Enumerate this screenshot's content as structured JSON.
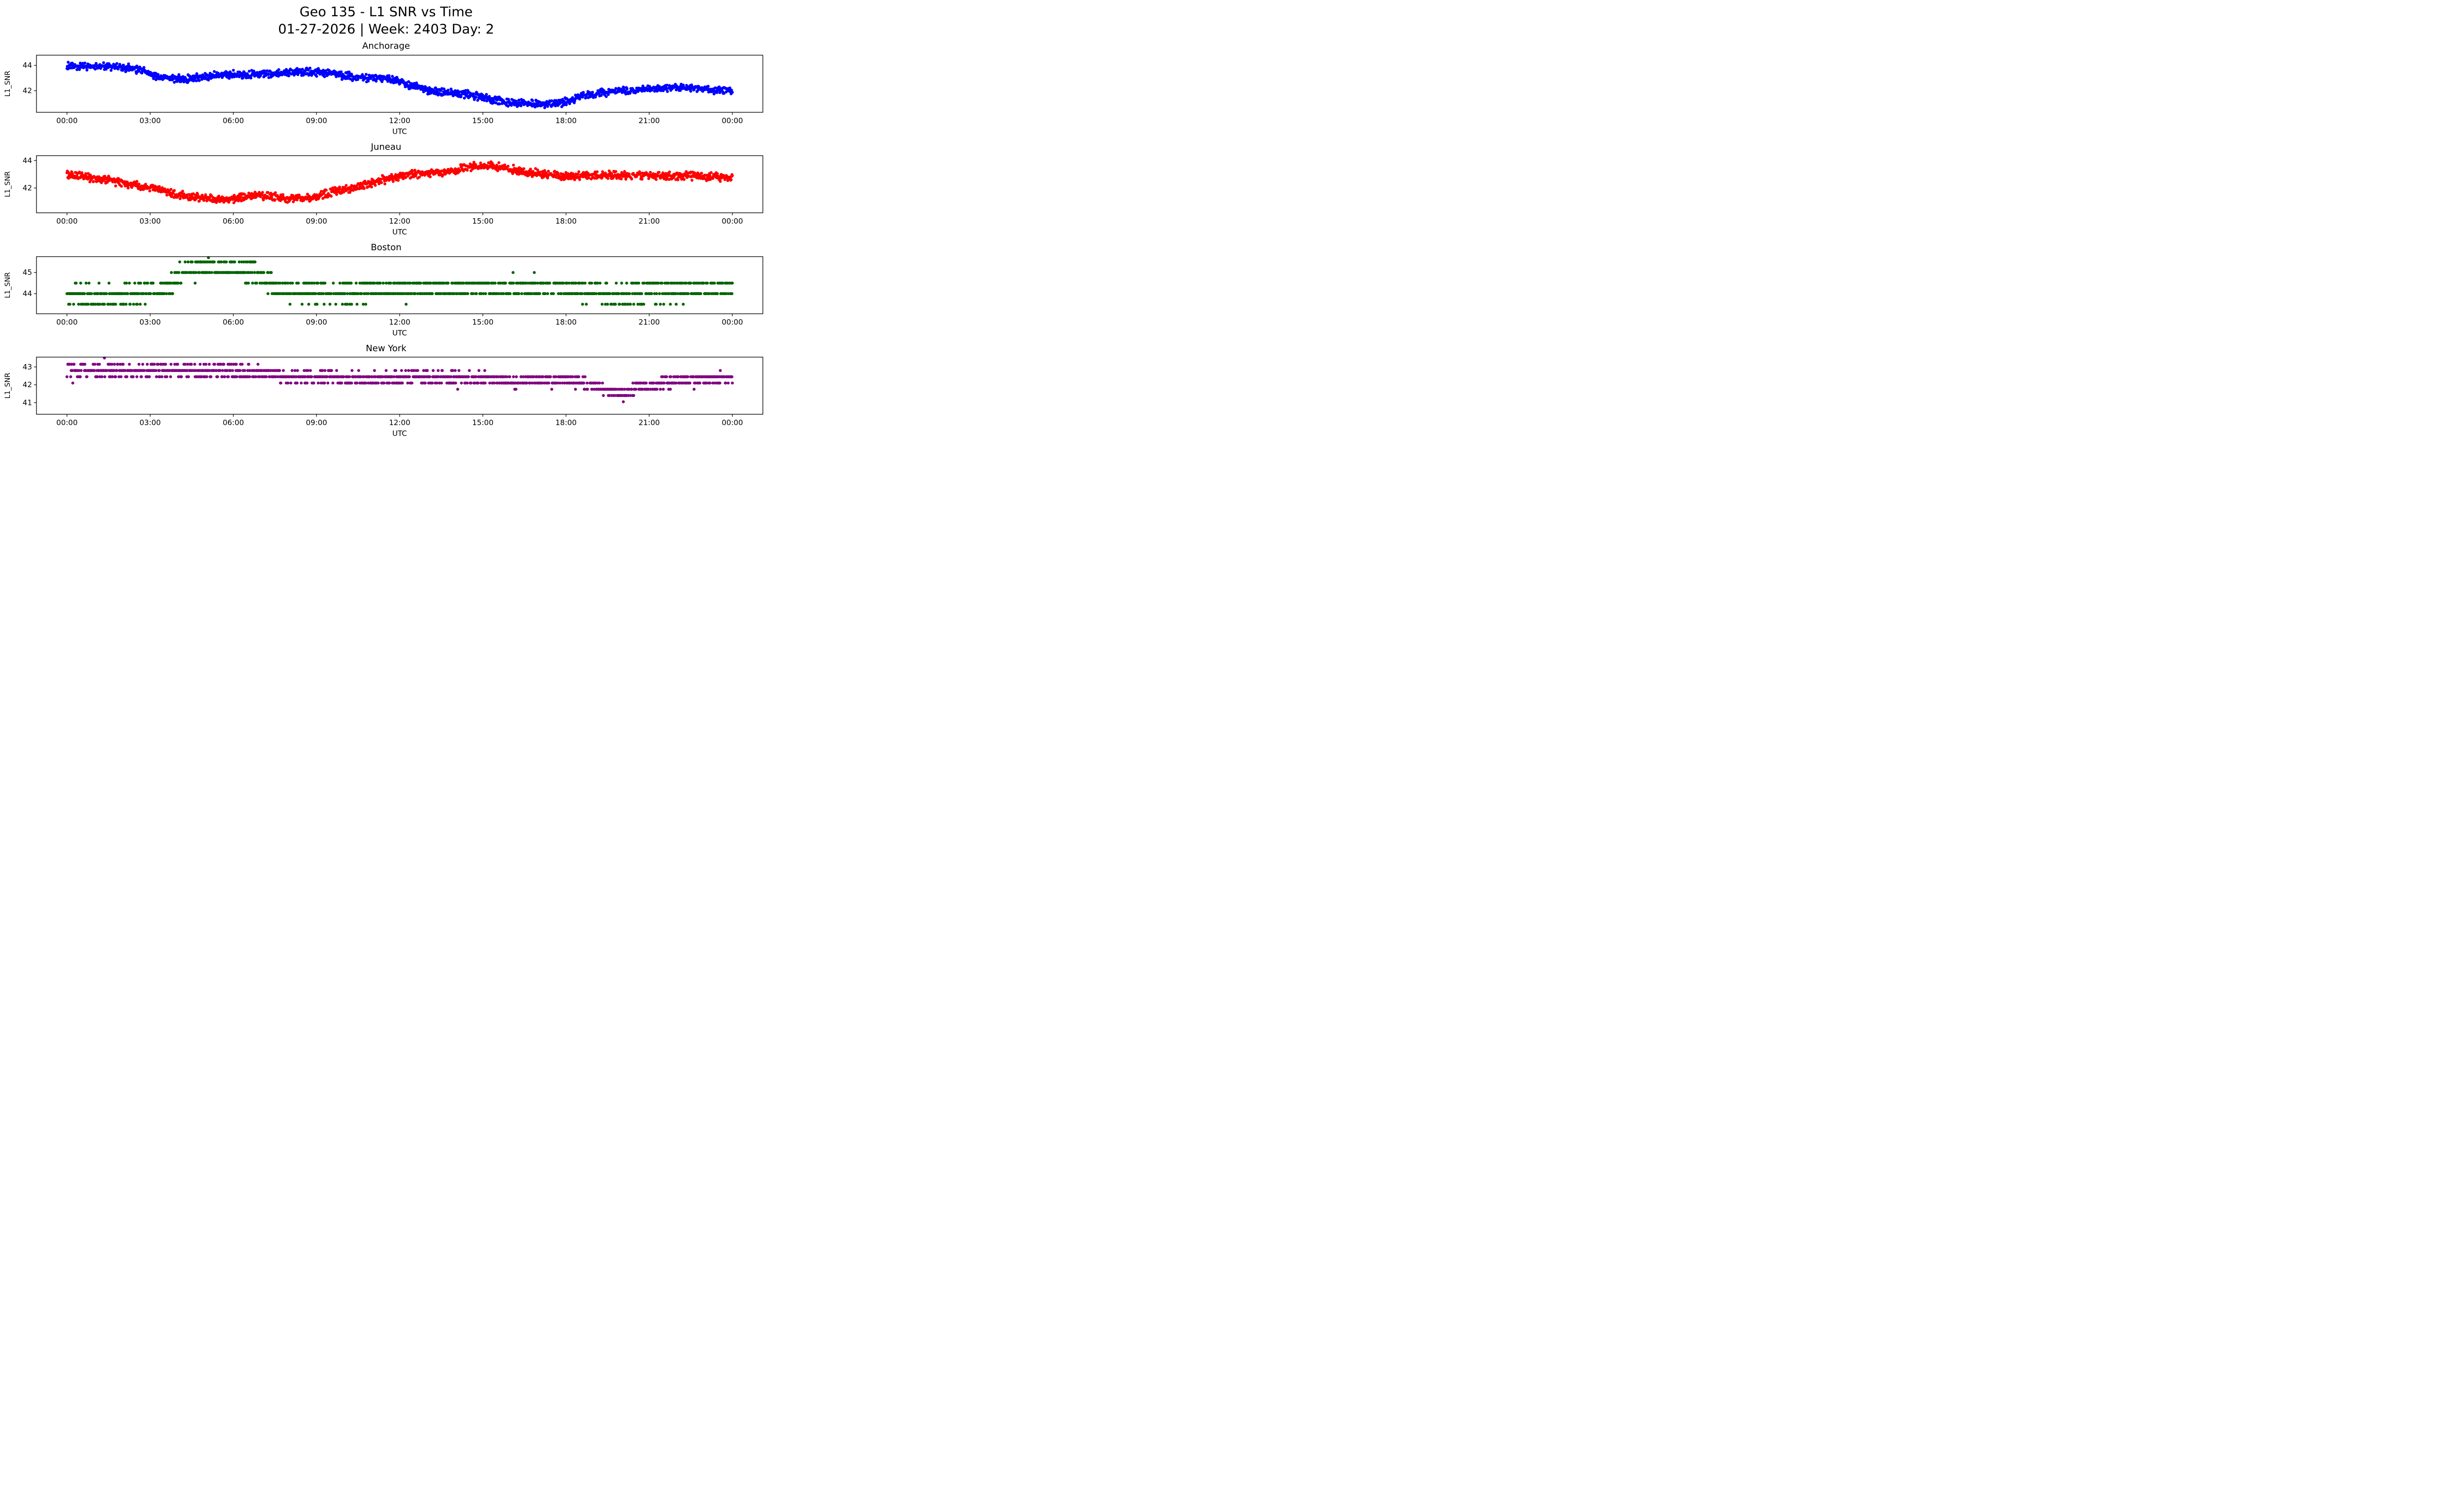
{
  "header": {
    "title_line1": "Geo 135 - L1 SNR vs Time",
    "title_line2": "01-27-2026 | Week: 2403 Day: 2"
  },
  "chart_data": [
    {
      "type": "scatter",
      "title": "Anchorage",
      "color": "#0000ff",
      "xlabel": "UTC",
      "ylabel": "L1_SNR",
      "xlim": [
        -1.1,
        25.1
      ],
      "ylim": [
        40.3,
        44.8
      ],
      "xticks": [
        0,
        3,
        6,
        9,
        12,
        15,
        18,
        21,
        24
      ],
      "xtick_labels": [
        "00:00",
        "03:00",
        "06:00",
        "09:00",
        "12:00",
        "15:00",
        "18:00",
        "21:00",
        "00:00"
      ],
      "yticks": [
        42,
        44
      ],
      "trend": [
        [
          0,
          43.95
        ],
        [
          0.8,
          43.95
        ],
        [
          1.5,
          43.9
        ],
        [
          2.3,
          43.8
        ],
        [
          2.8,
          43.55
        ],
        [
          3.3,
          43.1
        ],
        [
          3.8,
          42.95
        ],
        [
          4.3,
          42.9
        ],
        [
          4.8,
          43.05
        ],
        [
          5.5,
          43.25
        ],
        [
          6.5,
          43.3
        ],
        [
          7.5,
          43.35
        ],
        [
          8.2,
          43.5
        ],
        [
          8.8,
          43.5
        ],
        [
          9.4,
          43.4
        ],
        [
          10,
          43.2
        ],
        [
          10.7,
          43.05
        ],
        [
          11.3,
          43.0
        ],
        [
          11.8,
          42.85
        ],
        [
          12.3,
          42.5
        ],
        [
          12.8,
          42.15
        ],
        [
          13.3,
          41.95
        ],
        [
          14,
          41.85
        ],
        [
          14.7,
          41.6
        ],
        [
          15.3,
          41.3
        ],
        [
          15.8,
          41.1
        ],
        [
          16.5,
          41.0
        ],
        [
          17.2,
          40.95
        ],
        [
          17.8,
          41.05
        ],
        [
          18.3,
          41.35
        ],
        [
          18.8,
          41.65
        ],
        [
          19.3,
          41.85
        ],
        [
          20,
          42.0
        ],
        [
          20.7,
          42.05
        ],
        [
          21.3,
          42.2
        ],
        [
          22,
          42.3
        ],
        [
          22.5,
          42.25
        ],
        [
          23,
          42.1
        ],
        [
          23.5,
          42.05
        ],
        [
          24,
          42.0
        ]
      ],
      "noise": 0.35,
      "quant": 0,
      "quant_offset": 0,
      "gap": 0.04,
      "outlier_prob": 0
    },
    {
      "type": "scatter",
      "title": "Juneau",
      "color": "#ff0000",
      "xlabel": "UTC",
      "ylabel": "L1_SNR",
      "xlim": [
        -1.1,
        25.1
      ],
      "ylim": [
        40.2,
        44.35
      ],
      "xticks": [
        0,
        3,
        6,
        9,
        12,
        15,
        18,
        21,
        24
      ],
      "xtick_labels": [
        "00:00",
        "03:00",
        "06:00",
        "09:00",
        "12:00",
        "15:00",
        "18:00",
        "21:00",
        "00:00"
      ],
      "yticks": [
        42,
        44
      ],
      "trend": [
        [
          0,
          43.0
        ],
        [
          0.5,
          42.85
        ],
        [
          1,
          42.7
        ],
        [
          1.7,
          42.5
        ],
        [
          2.3,
          42.25
        ],
        [
          2.8,
          42.1
        ],
        [
          3.3,
          41.9
        ],
        [
          3.8,
          41.6
        ],
        [
          4.3,
          41.4
        ],
        [
          4.8,
          41.3
        ],
        [
          5.3,
          41.2
        ],
        [
          5.8,
          41.15
        ],
        [
          6.3,
          41.3
        ],
        [
          6.8,
          41.4
        ],
        [
          7.3,
          41.4
        ],
        [
          7.8,
          41.3
        ],
        [
          8.3,
          41.25
        ],
        [
          8.8,
          41.3
        ],
        [
          9.3,
          41.55
        ],
        [
          9.8,
          41.8
        ],
        [
          10.3,
          42.0
        ],
        [
          10.8,
          42.25
        ],
        [
          11.3,
          42.55
        ],
        [
          11.8,
          42.8
        ],
        [
          12.3,
          43.0
        ],
        [
          12.8,
          43.05
        ],
        [
          13.3,
          43.1
        ],
        [
          13.8,
          43.2
        ],
        [
          14.3,
          43.4
        ],
        [
          14.8,
          43.6
        ],
        [
          15.3,
          43.65
        ],
        [
          15.8,
          43.5
        ],
        [
          16.3,
          43.2
        ],
        [
          16.8,
          43.1
        ],
        [
          17.3,
          43.0
        ],
        [
          17.8,
          42.9
        ],
        [
          18.3,
          42.85
        ],
        [
          19,
          42.9
        ],
        [
          20,
          42.95
        ],
        [
          21,
          42.9
        ],
        [
          22,
          42.9
        ],
        [
          23,
          42.85
        ],
        [
          24,
          42.75
        ]
      ],
      "noise": 0.35,
      "quant": 0,
      "quant_offset": 0,
      "gap": 0.04,
      "outlier_prob": 0
    },
    {
      "type": "scatter",
      "title": "Boston",
      "color": "#006400",
      "xlabel": "UTC",
      "ylabel": "L1_SNR",
      "xlim": [
        -1.1,
        25.1
      ],
      "ylim": [
        43.05,
        45.75
      ],
      "xticks": [
        0,
        3,
        6,
        9,
        12,
        15,
        18,
        21,
        24
      ],
      "xtick_labels": [
        "00:00",
        "03:00",
        "06:00",
        "09:00",
        "12:00",
        "15:00",
        "18:00",
        "21:00",
        "00:00"
      ],
      "yticks": [
        44,
        45
      ],
      "trend": [
        [
          0,
          44.0
        ],
        [
          1,
          43.95
        ],
        [
          1.8,
          43.85
        ],
        [
          2.3,
          43.95
        ],
        [
          2.8,
          44.05
        ],
        [
          3.3,
          44.15
        ],
        [
          3.7,
          44.45
        ],
        [
          4.0,
          44.8
        ],
        [
          4.3,
          45.0
        ],
        [
          4.7,
          45.15
        ],
        [
          5.2,
          45.2
        ],
        [
          5.7,
          45.2
        ],
        [
          6.2,
          45.15
        ],
        [
          6.7,
          45.05
        ],
        [
          7.0,
          44.95
        ],
        [
          7.2,
          44.7
        ],
        [
          7.5,
          44.3
        ],
        [
          8,
          44.1
        ],
        [
          8.5,
          44.05
        ],
        [
          9,
          44.05
        ],
        [
          9.5,
          44.0
        ],
        [
          10,
          44.0
        ],
        [
          10.5,
          44.05
        ],
        [
          11,
          44.2
        ],
        [
          11.5,
          44.25
        ],
        [
          12,
          44.25
        ],
        [
          12.5,
          44.25
        ],
        [
          13,
          44.3
        ],
        [
          13.5,
          44.3
        ],
        [
          14,
          44.3
        ],
        [
          14.5,
          44.3
        ],
        [
          15,
          44.35
        ],
        [
          15.5,
          44.3
        ],
        [
          16,
          44.25
        ],
        [
          16.5,
          44.2
        ],
        [
          17,
          44.2
        ],
        [
          17.5,
          44.2
        ],
        [
          18,
          44.2
        ],
        [
          18.5,
          44.15
        ],
        [
          19,
          44.1
        ],
        [
          19.5,
          43.95
        ],
        [
          20,
          43.85
        ],
        [
          20.5,
          44.0
        ],
        [
          21,
          44.1
        ],
        [
          21.5,
          44.1
        ],
        [
          22,
          44.15
        ],
        [
          22.5,
          44.15
        ],
        [
          23,
          44.2
        ],
        [
          23.5,
          44.25
        ],
        [
          24,
          44.25
        ]
      ],
      "noise": 0.42,
      "quant": 0.5,
      "quant_offset": 0,
      "gap": 0.2,
      "outlier_prob": 0.012
    },
    {
      "type": "scatter",
      "title": "New York",
      "color": "#800080",
      "xlabel": "UTC",
      "ylabel": "L1_SNR",
      "xlim": [
        -1.1,
        25.1
      ],
      "ylim": [
        40.35,
        43.55
      ],
      "xticks": [
        0,
        3,
        6,
        9,
        12,
        15,
        18,
        21,
        24
      ],
      "xtick_labels": [
        "00:00",
        "03:00",
        "06:00",
        "09:00",
        "12:00",
        "15:00",
        "18:00",
        "21:00",
        "00:00"
      ],
      "yticks": [
        41,
        42,
        43
      ],
      "trend": [
        [
          0,
          42.8
        ],
        [
          1,
          42.8
        ],
        [
          2,
          42.75
        ],
        [
          3,
          42.8
        ],
        [
          4,
          42.8
        ],
        [
          5,
          42.8
        ],
        [
          6,
          42.8
        ],
        [
          6.8,
          42.75
        ],
        [
          7.3,
          42.65
        ],
        [
          7.8,
          42.5
        ],
        [
          8.3,
          42.45
        ],
        [
          9,
          42.45
        ],
        [
          10,
          42.4
        ],
        [
          10.5,
          42.35
        ],
        [
          11,
          42.35
        ],
        [
          12,
          42.4
        ],
        [
          13,
          42.45
        ],
        [
          13.5,
          42.45
        ],
        [
          14,
          42.4
        ],
        [
          15,
          42.35
        ],
        [
          15.8,
          42.25
        ],
        [
          16.3,
          42.15
        ],
        [
          16.8,
          42.25
        ],
        [
          17.3,
          42.3
        ],
        [
          18,
          42.3
        ],
        [
          18.5,
          42.15
        ],
        [
          19,
          41.95
        ],
        [
          19.4,
          41.7
        ],
        [
          19.8,
          41.55
        ],
        [
          20.1,
          41.5
        ],
        [
          20.4,
          41.75
        ],
        [
          20.8,
          42.0
        ],
        [
          21.3,
          42.1
        ],
        [
          21.8,
          42.2
        ],
        [
          22.3,
          42.3
        ],
        [
          23,
          42.3
        ],
        [
          23.5,
          42.35
        ],
        [
          24,
          42.35
        ]
      ],
      "noise": 0.3,
      "quant": 0.35,
      "quant_offset": 0.1,
      "gap": 0.2,
      "outlier_prob": 0.012
    }
  ]
}
